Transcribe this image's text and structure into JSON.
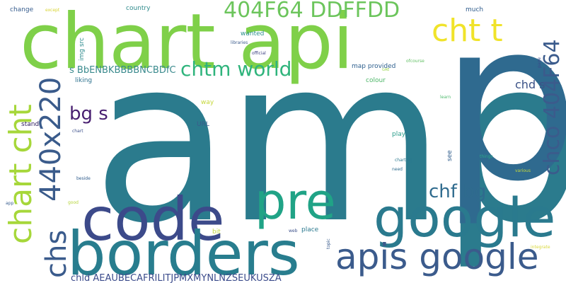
{
  "words": {
    "amp": {
      "text": "amp",
      "color": "#2b7b8d"
    },
    "p": {
      "text": "p",
      "color": "#2f6a8f"
    },
    "chart_api": {
      "text": "chart api",
      "color": "#7fd049"
    },
    "code": {
      "text": "code",
      "color": "#3c4a8a"
    },
    "borders": {
      "text": "borders",
      "color": "#287d8e"
    },
    "google": {
      "text": "google",
      "color": "#2a7a8e"
    },
    "pre": {
      "text": "pre",
      "color": "#20a386"
    },
    "apis_google": {
      "text": "apis google",
      "color": "#3b5b8c"
    },
    "hex_pair": {
      "text": "404F64 DDFFDD",
      "color": "#6cc55c"
    },
    "cht_t": {
      "text": "cht t",
      "color": "#f0e32a"
    },
    "chtm_world": {
      "text": "chtm world",
      "color": "#2fb47c"
    },
    "size_440": {
      "text": "440x220",
      "color": "#3a5b8b"
    },
    "chart_cht": {
      "text": "chart cht",
      "color": "#a6d73a"
    },
    "chs": {
      "text": "chs",
      "color": "#3a5b8c"
    },
    "chco": {
      "text": "chco 404F64",
      "color": "#3b5b8c"
    },
    "chf_bg": {
      "text": "chf bg",
      "color": "#2f6b8e"
    },
    "bg_s": {
      "text": "bg s",
      "color": "#481f70"
    },
    "chd_s": {
      "text": "chd s",
      "color": "#3b5287"
    },
    "s_bben": {
      "text": "s BbENBKBBBBNCBDfC",
      "color": "#3a8a8d"
    },
    "chld": {
      "text": "chld AEAUBECAFRILITJPMXMYNLNZSEUKUSZA",
      "color": "#3b4b8b"
    },
    "country": {
      "text": "country",
      "color": "#2f8b8c"
    },
    "much": {
      "text": "much",
      "color": "#2f5c8c"
    },
    "change": {
      "text": "change",
      "color": "#365c8d"
    },
    "except": {
      "text": "except",
      "color": "#d8d430"
    },
    "img_src": {
      "text": "img src",
      "color": "#2c8a8d"
    },
    "wanted": {
      "text": "wanted",
      "color": "#2b8f8c"
    },
    "libraries": {
      "text": "libraries",
      "color": "#3b5b8c"
    },
    "official": {
      "text": "official",
      "color": "#3b3f80"
    },
    "map_provided": {
      "text": "map provided",
      "color": "#2c5e8d"
    },
    "colour": {
      "text": "colour",
      "color": "#4db668"
    },
    "ofcourse": {
      "text": "ofcourse",
      "color": "#5fbf61"
    },
    "gae": {
      "text": "GAE",
      "color": "#9ad54a"
    },
    "liking": {
      "text": "liking",
      "color": "#2d718e"
    },
    "way": {
      "text": "way",
      "color": "#c6d83b"
    },
    "url": {
      "text": "URL",
      "color": "#3b5b8c"
    },
    "stand": {
      "text": "stand",
      "color": "#2b1a5e"
    },
    "chart_small": {
      "text": "chart",
      "color": "#3b4e8a"
    },
    "play": {
      "text": "play",
      "color": "#2a9d8a"
    },
    "see": {
      "text": "see",
      "color": "#2f5c8c"
    },
    "page": {
      "text": "page",
      "color": "#3b4b8b"
    },
    "learn": {
      "text": "learn",
      "color": "#4fba6d"
    },
    "charting": {
      "text": "charting",
      "color": "#2a788e"
    },
    "need": {
      "text": "need",
      "color": "#2f6c8e"
    },
    "things": {
      "text": "things",
      "color": "#2aa888"
    },
    "various": {
      "text": "various",
      "color": "#c6d83b"
    },
    "beside": {
      "text": "beside",
      "color": "#2f5c8c"
    },
    "app": {
      "text": "app",
      "color": "#365c8d"
    },
    "good": {
      "text": "good",
      "color": "#b7d53d"
    },
    "bit": {
      "text": "bit",
      "color": "#bfd53a"
    },
    "place": {
      "text": "place",
      "color": "#2a788e"
    },
    "web": {
      "text": "web",
      "color": "#3b4f8a"
    },
    "topic": {
      "text": "topic",
      "color": "#3a5b8c"
    },
    "integrate": {
      "text": "integrate",
      "color": "#d9d83a"
    }
  }
}
